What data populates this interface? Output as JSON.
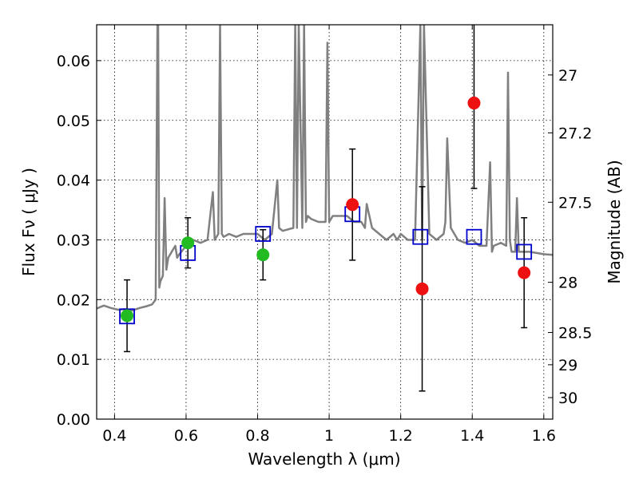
{
  "chart_data": {
    "type": "scatter",
    "title": "",
    "xlabel": "Wavelength  λ (μm)",
    "ylabel": "Flux  Fν  ( μJy )",
    "ylabel_right": "Magnitude (AB)",
    "xlim": [
      0.35,
      1.625
    ],
    "ylim": [
      0.0,
      0.066
    ],
    "grid": true,
    "x_ticks": [
      0.4,
      0.6,
      0.8,
      1.0,
      1.2,
      1.4,
      1.6
    ],
    "x_tick_labels": [
      "0.4",
      "0.6",
      "0.8",
      "1",
      "1.2",
      "1.4",
      "1.6"
    ],
    "y_ticks": [
      0.0,
      0.01,
      0.02,
      0.03,
      0.04,
      0.05,
      0.06
    ],
    "y_tick_labels": [
      "0.00",
      "0.01",
      "0.02",
      "0.03",
      "0.04",
      "0.05",
      "0.06"
    ],
    "right_ticks": [
      {
        "label": "27",
        "flux": 0.0576
      },
      {
        "label": "27.2",
        "flux": 0.0479
      },
      {
        "label": "27.5",
        "flux": 0.0363
      },
      {
        "label": "28",
        "flux": 0.0229
      },
      {
        "label": "28.5",
        "flux": 0.0145
      },
      {
        "label": "29",
        "flux": 0.0091
      },
      {
        "label": "30",
        "flux": 0.0036
      }
    ],
    "series": [
      {
        "type": "line",
        "color": "#808080",
        "x": [
          0.35,
          0.37,
          0.39,
          0.41,
          0.43,
          0.45,
          0.47,
          0.49,
          0.505,
          0.515,
          0.52,
          0.522,
          0.525,
          0.528,
          0.535,
          0.54,
          0.545,
          0.55,
          0.56,
          0.57,
          0.575,
          0.58,
          0.6,
          0.62,
          0.64,
          0.66,
          0.675,
          0.68,
          0.69,
          0.695,
          0.7,
          0.705,
          0.72,
          0.74,
          0.76,
          0.78,
          0.8,
          0.82,
          0.84,
          0.855,
          0.86,
          0.87,
          0.9,
          0.905,
          0.91,
          0.915,
          0.925,
          0.93,
          0.935,
          0.94,
          0.95,
          0.97,
          0.99,
          0.995,
          1.0,
          1.01,
          1.03,
          1.05,
          1.07,
          1.09,
          1.1,
          1.105,
          1.12,
          1.14,
          1.16,
          1.18,
          1.19,
          1.2,
          1.22,
          1.24,
          1.255,
          1.26,
          1.265,
          1.28,
          1.3,
          1.32,
          1.325,
          1.33,
          1.34,
          1.36,
          1.38,
          1.4,
          1.42,
          1.44,
          1.45,
          1.455,
          1.46,
          1.48,
          1.495,
          1.5,
          1.505,
          1.51,
          1.52,
          1.525,
          1.53,
          1.54,
          1.56,
          1.58,
          1.6,
          1.625
        ],
        "y": [
          0.0185,
          0.019,
          0.0186,
          0.0183,
          0.0184,
          0.0182,
          0.0186,
          0.0189,
          0.0192,
          0.02,
          0.066,
          0.066,
          0.022,
          0.023,
          0.024,
          0.037,
          0.025,
          0.027,
          0.028,
          0.029,
          0.027,
          0.0275,
          0.029,
          0.03,
          0.0295,
          0.03,
          0.038,
          0.03,
          0.031,
          0.066,
          0.031,
          0.0305,
          0.031,
          0.0305,
          0.031,
          0.031,
          0.031,
          0.03,
          0.031,
          0.04,
          0.032,
          0.0315,
          0.032,
          0.066,
          0.032,
          0.066,
          0.032,
          0.066,
          0.033,
          0.034,
          0.0335,
          0.033,
          0.033,
          0.063,
          0.033,
          0.034,
          0.034,
          0.034,
          0.033,
          0.033,
          0.032,
          0.036,
          0.032,
          0.031,
          0.03,
          0.031,
          0.03,
          0.031,
          0.03,
          0.03,
          0.066,
          0.03,
          0.066,
          0.031,
          0.03,
          0.031,
          0.033,
          0.047,
          0.032,
          0.03,
          0.0295,
          0.03,
          0.029,
          0.029,
          0.043,
          0.028,
          0.029,
          0.0295,
          0.029,
          0.058,
          0.03,
          0.028,
          0.028,
          0.037,
          0.028,
          0.028,
          0.028,
          0.0278,
          0.0276,
          0.0275
        ]
      },
      {
        "type": "scatter",
        "marker": "square-open",
        "color": "#0000cc",
        "x": [
          0.435,
          0.605,
          0.815,
          1.065,
          1.255,
          1.405,
          1.545
        ],
        "y": [
          0.0172,
          0.0278,
          0.031,
          0.0343,
          0.0305,
          0.0305,
          0.028
        ]
      },
      {
        "type": "scatter",
        "marker": "circle",
        "color": "#22bb22",
        "x": [
          0.435,
          0.605,
          0.815
        ],
        "y": [
          0.0173,
          0.0295,
          0.0275
        ],
        "yerr": [
          0.006,
          0.0042,
          0.0042
        ]
      },
      {
        "type": "scatter",
        "marker": "circle",
        "color": "#ee1111",
        "x": [
          1.065,
          1.26,
          1.405,
          1.545
        ],
        "y": [
          0.0359,
          0.0218,
          0.0529,
          0.0245
        ],
        "yerr_low": [
          0.0093,
          0.0171,
          0.0143,
          0.0092
        ],
        "yerr_high": [
          0.0093,
          0.0171,
          0.0131,
          0.0092
        ]
      }
    ]
  }
}
